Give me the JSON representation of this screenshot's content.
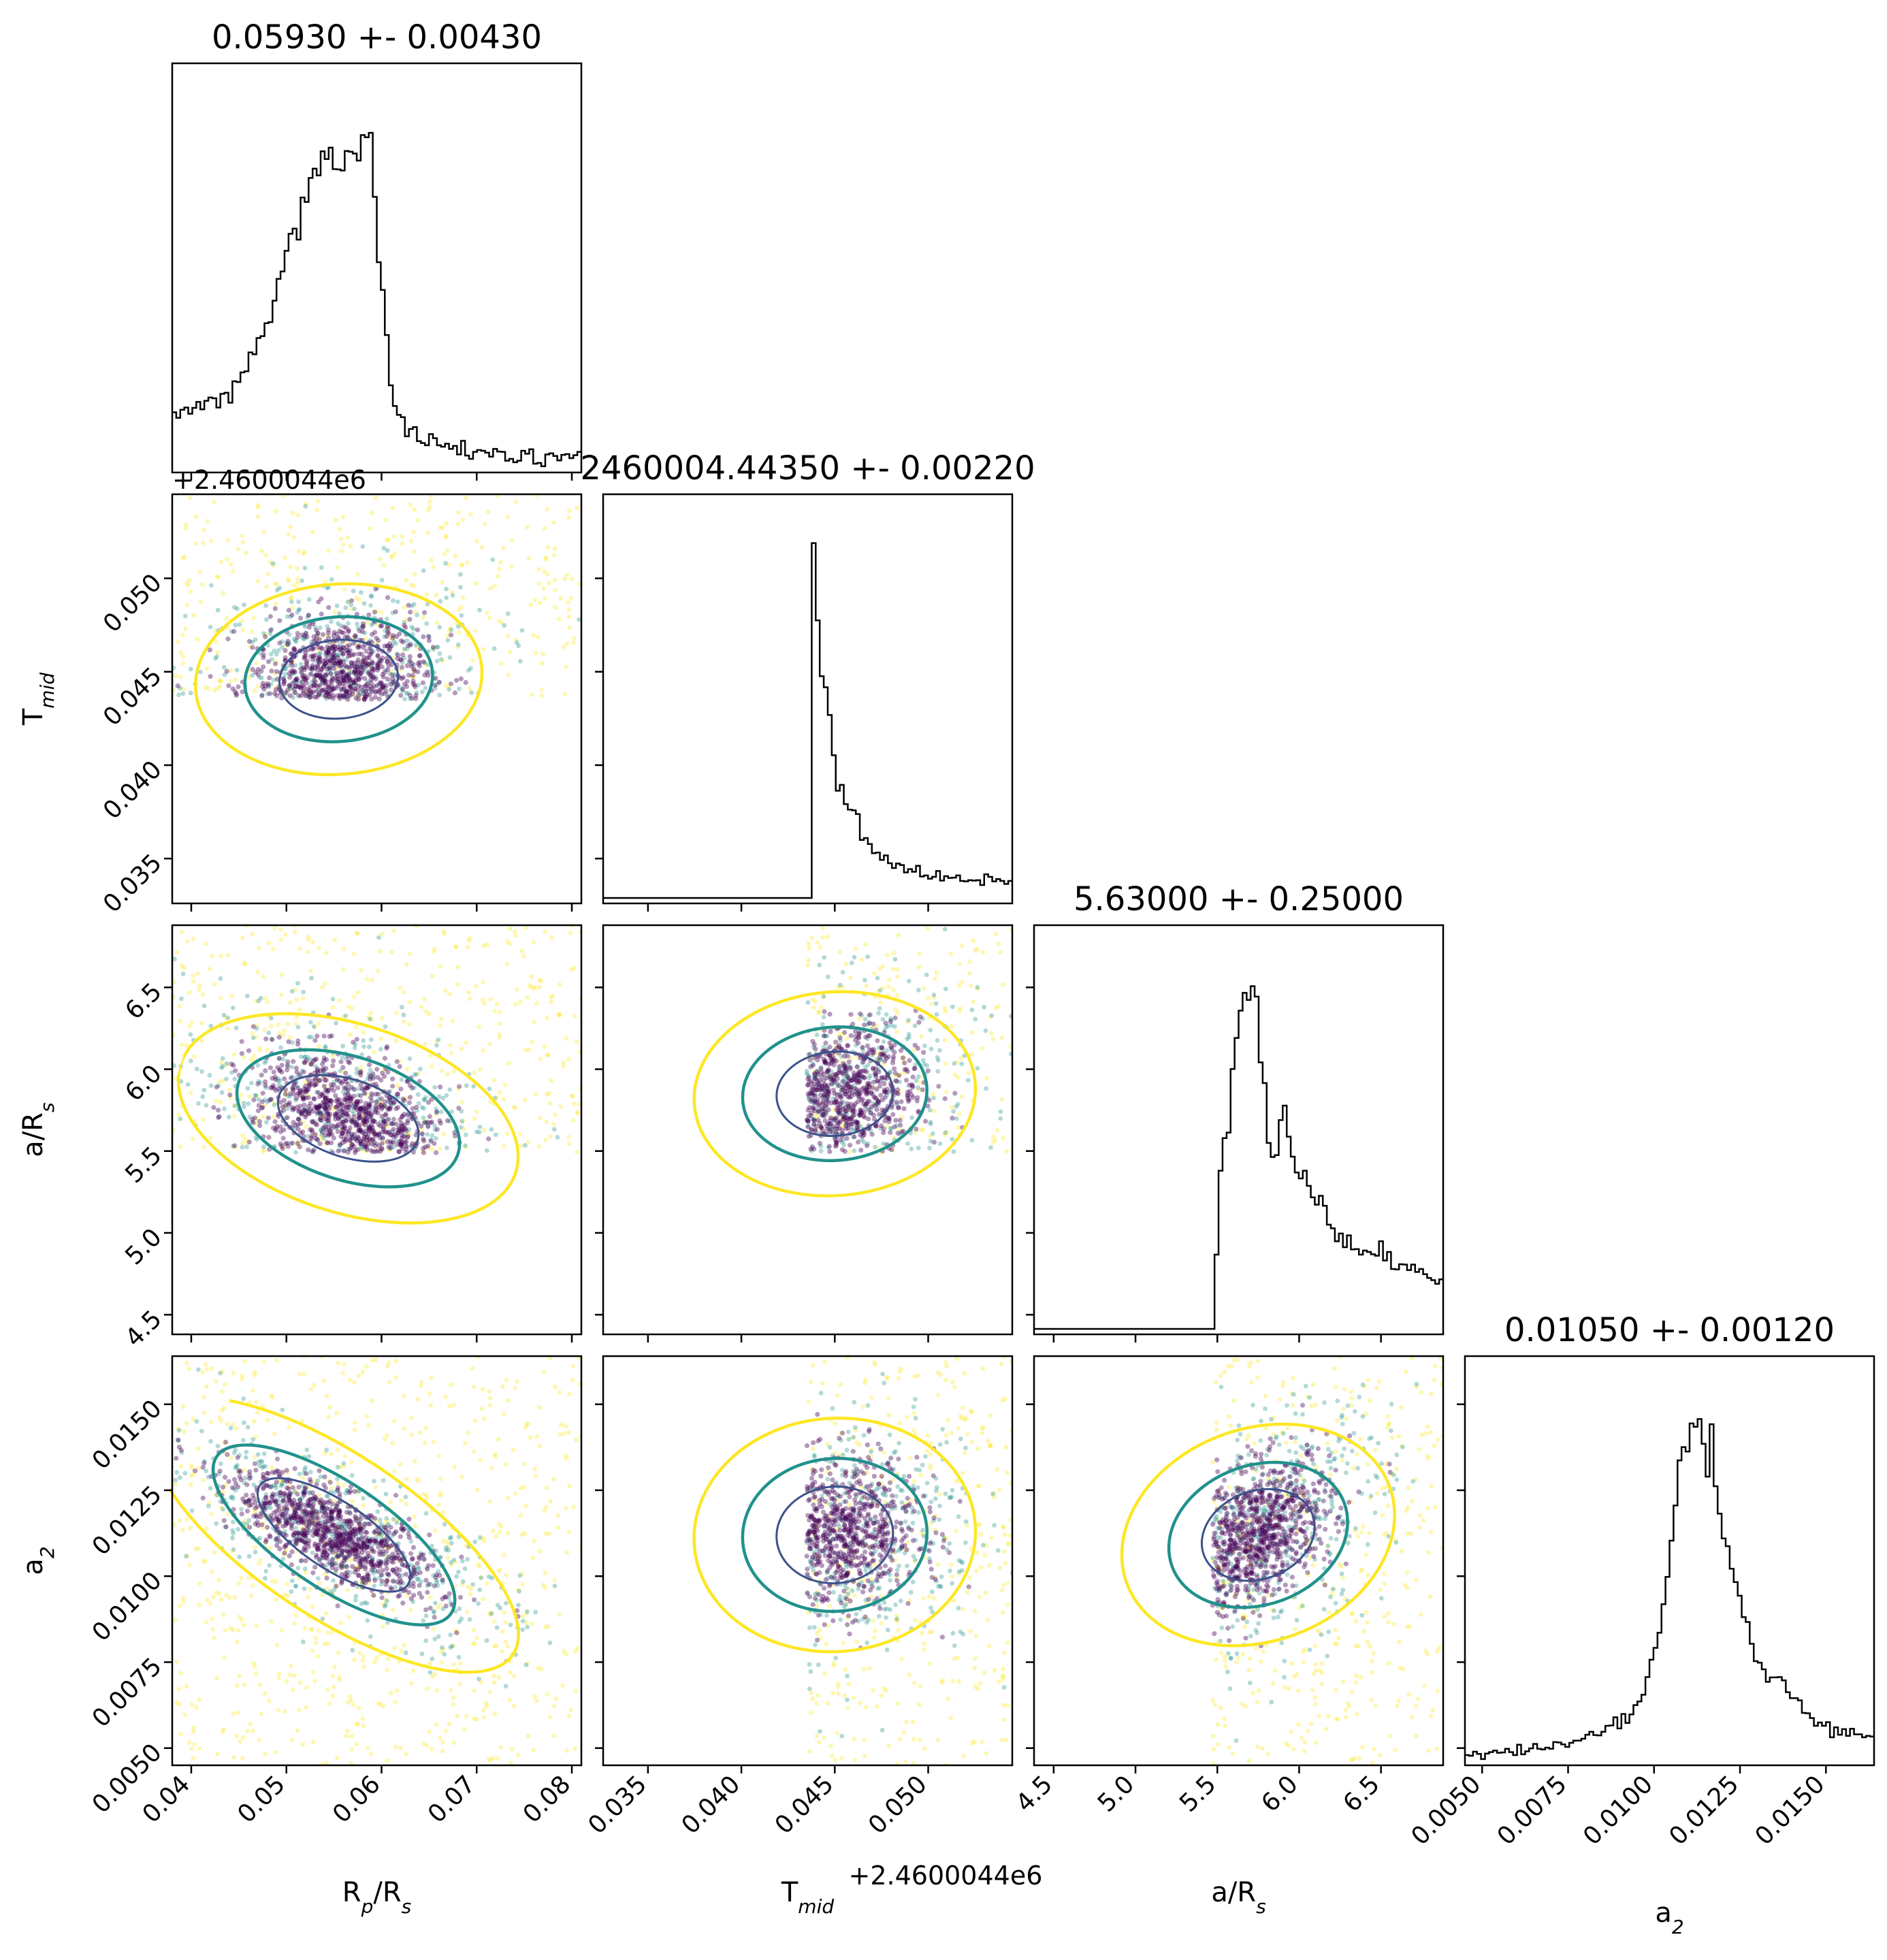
{
  "chart_data": {
    "type": "corner",
    "parameters": [
      {
        "key": "rp",
        "label": "R",
        "label_sub": "p",
        "label_tail": "/R",
        "label_tail_sub": "s",
        "range": [
          0.038,
          0.081
        ],
        "ticks": [
          0.04,
          0.05,
          0.06,
          0.07,
          0.08
        ],
        "tick_labels": [
          "0.04",
          "0.05",
          "0.06",
          "0.07",
          "0.08"
        ],
        "title": "0.05930 +- 0.00430"
      },
      {
        "key": "tmid",
        "label": "T",
        "label_sub": "mid",
        "label_tail": "",
        "label_tail_sub": "",
        "range": [
          0.0326,
          0.0545
        ],
        "ticks": [
          0.035,
          0.04,
          0.045,
          0.05
        ],
        "tick_labels": [
          "0.035",
          "0.040",
          "0.045",
          "0.050"
        ],
        "offset_text": "+2.4600044e6",
        "title": "2460004.44350 +- 0.00220"
      },
      {
        "key": "ars",
        "label": "a/R",
        "label_sub": "s",
        "label_tail": "",
        "label_tail_sub": "",
        "range": [
          4.38,
          6.88
        ],
        "ticks": [
          4.5,
          5.0,
          5.5,
          6.0,
          6.5
        ],
        "tick_labels": [
          "4.5",
          "5.0",
          "5.5",
          "6.0",
          "6.5"
        ],
        "title": "5.63000 +- 0.25000"
      },
      {
        "key": "a2",
        "label": "a",
        "label_sub": "2",
        "label_tail": "",
        "label_tail_sub": "",
        "range": [
          0.0045,
          0.0164
        ],
        "ticks": [
          0.005,
          0.0075,
          0.01,
          0.0125,
          0.015
        ],
        "tick_labels": [
          "0.0050",
          "0.0075",
          "0.0100",
          "0.0125",
          "0.0150"
        ],
        "title": "0.01050 +- 0.00120"
      }
    ],
    "histograms": {
      "rp": [
        0.148,
        0.133,
        0.155,
        0.161,
        0.144,
        0.16,
        0.176,
        0.156,
        0.179,
        0.188,
        0.186,
        0.161,
        0.198,
        0.201,
        0.174,
        0.232,
        0.23,
        0.256,
        0.259,
        0.31,
        0.305,
        0.349,
        0.354,
        0.389,
        0.392,
        0.45,
        0.509,
        0.529,
        0.585,
        0.631,
        0.645,
        0.615,
        0.729,
        0.717,
        0.782,
        0.807,
        0.789,
        0.854,
        0.833,
        0.864,
        0.806,
        0.805,
        0.802,
        0.855,
        0.853,
        0.848,
        0.829,
        0.898,
        0.892,
        0.904,
        0.731,
        0.554,
        0.479,
        0.357,
        0.221,
        0.165,
        0.141,
        0.135,
        0.083,
        0.103,
        0.108,
        0.07,
        0.065,
        0.059,
        0.089,
        0.078,
        0.059,
        0.055,
        0.063,
        0.049,
        0.057,
        0.034,
        0.071,
        0.031,
        0.022,
        0.041,
        0.046,
        0.044,
        0.039,
        0.028,
        0.049,
        0.042,
        0.041,
        0.017,
        0.022,
        0.013,
        0.017,
        0.044,
        0.036,
        0.048,
        0.009,
        0.011,
        0.002,
        0.034,
        0.037,
        0.03,
        0.018,
        0.033,
        0.035,
        0.024,
        0.032,
        0.041
      ],
      "tmid": [
        0,
        0,
        0,
        0,
        0,
        0,
        0,
        0,
        0,
        0,
        0,
        0,
        0,
        0,
        0,
        0,
        0,
        0,
        0,
        0,
        0,
        0,
        0,
        0,
        0,
        0,
        0,
        0,
        0,
        0,
        0,
        0,
        0,
        0,
        0,
        0,
        0,
        0,
        0,
        0,
        0,
        0,
        0,
        0,
        0,
        0,
        0,
        0,
        0,
        0,
        0,
        0,
        0.96,
        0.751,
        0.6,
        0.57,
        0.495,
        0.386,
        0.29,
        0.306,
        0.254,
        0.239,
        0.237,
        0.227,
        0.157,
        0.162,
        0.146,
        0.121,
        0.123,
        0.103,
        0.115,
        0.094,
        0.081,
        0.093,
        0.089,
        0.069,
        0.078,
        0.071,
        0.087,
        0.058,
        0.061,
        0.052,
        0.057,
        0.073,
        0.047,
        0.059,
        0.054,
        0.055,
        0.061,
        0.046,
        0.045,
        0.048,
        0.047,
        0.048,
        0.035,
        0.064,
        0.057,
        0.045,
        0.051,
        0.046,
        0.038,
        0.046
      ],
      "ars": [
        0,
        0,
        0,
        0,
        0,
        0,
        0,
        0,
        0,
        0,
        0,
        0,
        0,
        0,
        0,
        0,
        0,
        0,
        0,
        0,
        0,
        0,
        0,
        0,
        0,
        0,
        0,
        0,
        0,
        0,
        0,
        0,
        0,
        0,
        0,
        0,
        0,
        0,
        0,
        0,
        0,
        0,
        0,
        0,
        0,
        0.201,
        0.428,
        0.516,
        0.531,
        0.703,
        0.787,
        0.861,
        0.909,
        0.89,
        0.927,
        0.899,
        0.721,
        0.665,
        0.503,
        0.465,
        0.47,
        0.565,
        0.604,
        0.52,
        0.466,
        0.423,
        0.407,
        0.428,
        0.387,
        0.356,
        0.336,
        0.36,
        0.333,
        0.282,
        0.272,
        0.237,
        0.258,
        0.221,
        0.253,
        0.215,
        0.216,
        0.201,
        0.212,
        0.208,
        0.202,
        0.198,
        0.237,
        0.185,
        0.208,
        0.162,
        0.161,
        0.175,
        0.174,
        0.159,
        0.174,
        0.154,
        0.162,
        0.148,
        0.138,
        0.132,
        0.122,
        0.134
      ],
      "a2": [
        0.013,
        0.011,
        0.022,
        0.016,
        0.002,
        0.017,
        0.021,
        0.025,
        0.019,
        0.02,
        0.03,
        0.021,
        0.013,
        0.041,
        0.015,
        0.023,
        0.031,
        0.043,
        0.03,
        0.028,
        0.033,
        0.03,
        0.048,
        0.047,
        0.042,
        0.035,
        0.046,
        0.052,
        0.052,
        0.057,
        0.068,
        0.076,
        0.067,
        0.066,
        0.076,
        0.092,
        0.093,
        0.115,
        0.085,
        0.124,
        0.1,
        0.123,
        0.148,
        0.158,
        0.176,
        0.224,
        0.271,
        0.303,
        0.344,
        0.421,
        0.495,
        0.593,
        0.688,
        0.81,
        0.846,
        0.834,
        0.91,
        0.901,
        0.922,
        0.855,
        0.766,
        0.908,
        0.74,
        0.666,
        0.599,
        0.578,
        0.517,
        0.481,
        0.444,
        0.386,
        0.373,
        0.314,
        0.267,
        0.263,
        0.245,
        0.211,
        0.223,
        0.223,
        0.224,
        0.215,
        0.183,
        0.167,
        0.167,
        0.161,
        0.127,
        0.126,
        0.113,
        0.092,
        0.101,
        0.092,
        0.102,
        0.061,
        0.088,
        0.068,
        0.083,
        0.065,
        0.084,
        0.069,
        0.069,
        0.061,
        0.065,
        0.063
      ]
    },
    "pair_panels": [
      {
        "x": "rp",
        "y": "tmid",
        "center": [
          0.0555,
          0.0446
        ],
        "spread": [
          0.005,
          0.0018
        ],
        "clip": "y>=0.0435"
      },
      {
        "x": "rp",
        "y": "ars",
        "center": [
          0.0565,
          5.7
        ],
        "spread": [
          0.0055,
          0.22
        ],
        "clip": "y>=5.49"
      },
      {
        "x": "rp",
        "y": "a2",
        "center": [
          0.055,
          0.0112
        ],
        "spread": [
          0.006,
          0.001
        ]
      },
      {
        "x": "tmid",
        "y": "ars",
        "center": [
          0.045,
          5.85
        ],
        "spread": [
          0.0025,
          0.22
        ],
        "clip": "x>=0.0435,y>=5.49"
      },
      {
        "x": "tmid",
        "y": "a2",
        "center": [
          0.045,
          0.0112
        ],
        "spread": [
          0.0025,
          0.0012
        ],
        "clip": "x>=0.0435"
      },
      {
        "x": "ars",
        "y": "a2",
        "center": [
          5.75,
          0.0112
        ],
        "spread": [
          0.25,
          0.0012
        ],
        "clip": "x>=5.47"
      }
    ],
    "colors": {
      "dense": "#440154",
      "mid": "#21918c",
      "outer": "#fde725",
      "hist": "#000000"
    }
  }
}
